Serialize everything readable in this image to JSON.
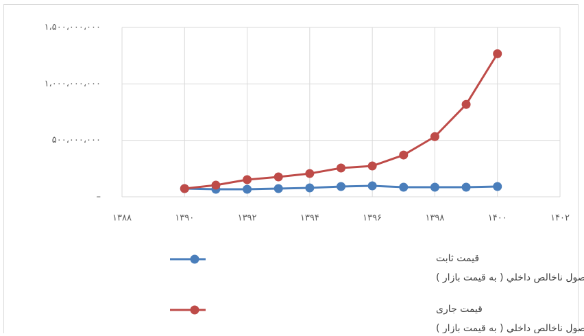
{
  "chart_data": {
    "type": "line",
    "x": [
      1390,
      1391,
      1392,
      1393,
      1394,
      1395,
      1396,
      1397,
      1398,
      1399,
      1400
    ],
    "series": [
      {
        "name": "قیمت ثابت\nمحصول ناخالص داخلي ( به قيمت بازار )",
        "color": "#4a7ebb",
        "values": [
          73000000,
          67000000,
          67000000,
          73000000,
          79000000,
          91000000,
          97000000,
          85000000,
          85000000,
          85000000,
          91000000
        ]
      },
      {
        "name": "قیمت جاری\nمحصول ناخالص داخلي ( به قيمت بازار )",
        "color": "#be4b48",
        "values": [
          73000000,
          103000000,
          152000000,
          176000000,
          206000000,
          255000000,
          273000000,
          370000000,
          533000000,
          818000000,
          1267000000
        ]
      }
    ],
    "xlim": [
      1388,
      1402
    ],
    "xticks": [
      {
        "value": 1388,
        "label": "۱۳۸۸"
      },
      {
        "value": 1390,
        "label": "۱۳۹۰"
      },
      {
        "value": 1392,
        "label": "۱۳۹۲"
      },
      {
        "value": 1394,
        "label": "۱۳۹۴"
      },
      {
        "value": 1396,
        "label": "۱۳۹۶"
      },
      {
        "value": 1398,
        "label": "۱۳۹۸"
      },
      {
        "value": 1400,
        "label": "۱۴۰۰"
      },
      {
        "value": 1402,
        "label": "۱۴۰۲"
      }
    ],
    "ylim": [
      0,
      1500000000
    ],
    "yticks": [
      {
        "value": 0,
        "label": "–"
      },
      {
        "value": 500000000,
        "label": "۵۰۰،۰۰۰،۰۰۰"
      },
      {
        "value": 1000000000,
        "label": "۱،۰۰۰،۰۰۰،۰۰۰"
      },
      {
        "value": 1500000000,
        "label": "۱،۵۰۰،۰۰۰،۰۰۰"
      }
    ],
    "grid": true,
    "legend": "bottom"
  }
}
